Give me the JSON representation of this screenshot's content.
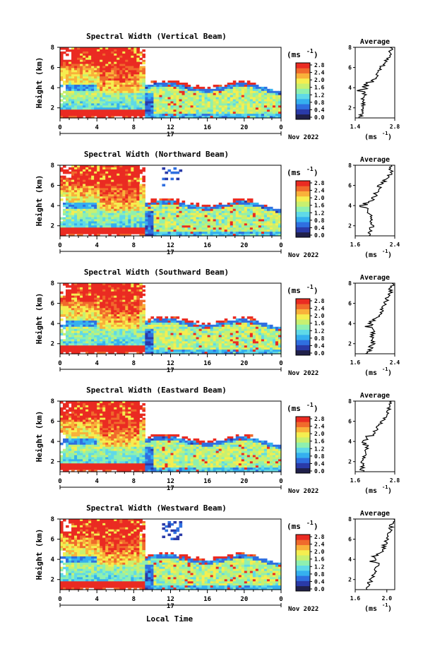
{
  "figure": {
    "panels": [
      {
        "title": "Spectral Width (Vertical Beam)",
        "avg_ticks": [
          "1.4",
          "2.8"
        ],
        "avg_xlim": [
          1.4,
          2.8
        ],
        "prof_start": 1.6,
        "prof_end": 2.7
      },
      {
        "title": "Spectral Width (Northward Beam)",
        "avg_ticks": [
          "1.6",
          "2.4"
        ],
        "avg_xlim": [
          1.6,
          2.4
        ],
        "prof_start": 1.85,
        "prof_end": 2.35
      },
      {
        "title": "Spectral Width (Southward Beam)",
        "avg_ticks": [
          "1.6",
          "2.4"
        ],
        "avg_xlim": [
          1.6,
          2.4
        ],
        "prof_start": 1.85,
        "prof_end": 2.35
      },
      {
        "title": "Spectral Width (Eastward Beam)",
        "avg_ticks": [
          "1.6",
          "2.8"
        ],
        "avg_xlim": [
          1.6,
          2.8
        ],
        "prof_start": 1.8,
        "prof_end": 2.7
      },
      {
        "title": "Spectral Width (Westward Beam)",
        "avg_ticks": [
          "1.6",
          "2.0"
        ],
        "avg_xlim": [
          1.6,
          2.1
        ],
        "prof_start": 1.75,
        "prof_end": 2.08
      }
    ],
    "ylabel": "Height (km)",
    "y_ticks": [
      "2",
      "4",
      "6",
      "8"
    ],
    "x_ticks": [
      "0",
      "4",
      "8",
      "12",
      "16",
      "20",
      "0"
    ],
    "day_label": "17",
    "month_label": "Nov 2022",
    "colorbar_unit": "(ms",
    "unit_exp": "-1",
    "colorbar_ticks": [
      "0.0",
      "0.4",
      "0.8",
      "1.2",
      "1.6",
      "2.0",
      "2.4",
      "2.8"
    ],
    "avg_title": "Average",
    "avg_unit": "(ms",
    "xlabel": "Local Time",
    "colors": {
      "colormap": [
        "#20204a",
        "#2a3aa8",
        "#2f6fe0",
        "#35b0ef",
        "#5fd9e8",
        "#8ef0b0",
        "#c8f070",
        "#f5ee50",
        "#f9b13a",
        "#f06a2c",
        "#ea2b22"
      ]
    }
  },
  "chart_data": {
    "type": "heatmap",
    "x_unit": "local time (h)",
    "x_range": [
      0,
      24
    ],
    "y_range": [
      1,
      8
    ],
    "color_range": [
      0.0,
      2.8
    ],
    "average_profiles": [
      {
        "beam": "Vertical",
        "height_km": [
          1,
          2,
          3,
          4,
          5,
          6,
          7,
          8
        ],
        "width_ms": [
          1.6,
          1.7,
          1.7,
          1.8,
          2.1,
          2.3,
          2.6,
          2.7
        ]
      },
      {
        "beam": "Northward",
        "height_km": [
          1,
          2,
          3,
          4,
          5,
          6,
          7,
          8
        ],
        "width_ms": [
          1.85,
          1.95,
          1.9,
          1.85,
          2.0,
          2.1,
          2.3,
          2.35
        ]
      },
      {
        "beam": "Southward",
        "height_km": [
          1,
          2,
          3,
          4,
          5,
          6,
          7,
          8
        ],
        "width_ms": [
          1.85,
          1.95,
          1.95,
          2.0,
          2.1,
          2.2,
          2.3,
          2.35
        ]
      },
      {
        "beam": "Eastward",
        "height_km": [
          1,
          2,
          3,
          4,
          5,
          6,
          7,
          8
        ],
        "width_ms": [
          1.8,
          1.85,
          1.9,
          2.0,
          2.2,
          2.4,
          2.6,
          2.7
        ]
      },
      {
        "beam": "Westward",
        "height_km": [
          1,
          2,
          3,
          4,
          5,
          6,
          7,
          8
        ],
        "width_ms": [
          1.75,
          1.8,
          1.85,
          1.9,
          1.95,
          2.0,
          2.05,
          2.08
        ]
      }
    ]
  }
}
